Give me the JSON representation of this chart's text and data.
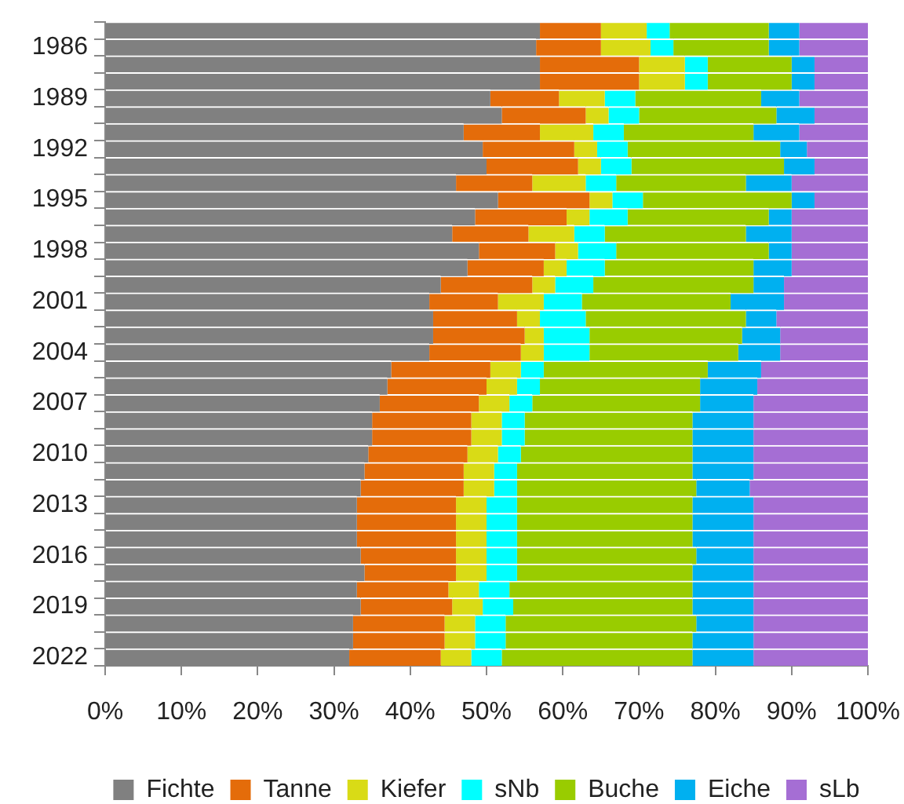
{
  "chart_data": {
    "type": "bar",
    "orientation": "horizontal",
    "stacked": true,
    "categories": [
      null,
      "1986",
      null,
      null,
      "1989",
      null,
      null,
      "1992",
      null,
      null,
      "1995",
      null,
      null,
      "1998",
      null,
      null,
      "2001",
      null,
      null,
      "2004",
      null,
      null,
      "2007",
      null,
      null,
      "2010",
      null,
      null,
      "2013",
      null,
      null,
      "2016",
      null,
      null,
      "2019",
      null,
      null,
      "2022"
    ],
    "series": [
      {
        "name": "Fichte",
        "color": "#808080",
        "values": [
          57,
          56.5,
          57,
          57,
          50.5,
          52,
          47,
          49.5,
          50,
          46,
          51.5,
          48.5,
          45.5,
          49,
          47.5,
          44,
          42.5,
          43,
          43,
          42.5,
          37.5,
          37,
          36,
          35,
          35,
          34.5,
          34,
          33.5,
          33,
          33,
          33,
          33.5,
          34,
          33,
          33.5,
          32.5,
          32.5,
          32
        ]
      },
      {
        "name": "Tanne",
        "color": "#e46c0a",
        "values": [
          8,
          8.5,
          13,
          13,
          9,
          11,
          10,
          12,
          12,
          10,
          12,
          12,
          10,
          10,
          10,
          12,
          9,
          11,
          12,
          12,
          13,
          13,
          13,
          13,
          13,
          13,
          13,
          13.5,
          13,
          13,
          13,
          12.5,
          12,
          12,
          12,
          12,
          12,
          12
        ]
      },
      {
        "name": "Kiefer",
        "color": "#d9db16",
        "values": [
          6,
          6.5,
          6,
          6,
          6,
          3,
          7,
          3,
          3,
          7,
          3,
          3,
          6,
          3,
          3,
          3,
          6,
          3,
          2.5,
          3,
          4,
          4,
          4,
          4,
          4,
          4,
          4,
          4,
          4,
          4,
          4,
          4,
          4,
          4,
          4,
          4,
          4,
          4
        ]
      },
      {
        "name": "sNb",
        "color": "#00ffff",
        "values": [
          3,
          3,
          3,
          3,
          4,
          4,
          4,
          4,
          4,
          4,
          4,
          5,
          4,
          5,
          5,
          5,
          5,
          6,
          6,
          6,
          3,
          3,
          3,
          3,
          3,
          3,
          3,
          3,
          4,
          4,
          4,
          4,
          4,
          4,
          4,
          4,
          4,
          4
        ]
      },
      {
        "name": "Buche",
        "color": "#99cc00",
        "values": [
          13,
          12.5,
          11,
          11,
          16.5,
          18,
          17,
          20,
          20,
          17,
          19.5,
          18.5,
          18.5,
          20,
          19.5,
          21,
          19.5,
          21,
          20,
          19.5,
          21.5,
          21,
          22,
          22,
          22,
          22.5,
          23,
          23.5,
          23,
          23,
          23,
          23.5,
          23,
          24,
          23.5,
          25,
          24.5,
          25
        ]
      },
      {
        "name": "Eiche",
        "color": "#00b0f0",
        "values": [
          4,
          4,
          3,
          3,
          5,
          5,
          6,
          3.5,
          4,
          6,
          3,
          3,
          6,
          3,
          5,
          4,
          7,
          4,
          5,
          5.5,
          7,
          7.5,
          7,
          8,
          8,
          8,
          8,
          7,
          8,
          8,
          8,
          7.5,
          8,
          8,
          8,
          7.5,
          8,
          8
        ]
      },
      {
        "name": "sLb",
        "color": "#a56ed4",
        "values": [
          9,
          9,
          7,
          7,
          9,
          7,
          9,
          8,
          7,
          10,
          7,
          10,
          10,
          10,
          10,
          11,
          11,
          12,
          11.5,
          11.5,
          14,
          14.5,
          15,
          15,
          15,
          15,
          15,
          15.5,
          15,
          15,
          15,
          15,
          15,
          15,
          15,
          15,
          15,
          15
        ]
      }
    ],
    "xlim": [
      0,
      100
    ],
    "xticks": [
      {
        "value": 0,
        "label": "0%"
      },
      {
        "value": 10,
        "label": "10%"
      },
      {
        "value": 20,
        "label": "20%"
      },
      {
        "value": 30,
        "label": "30%"
      },
      {
        "value": 40,
        "label": "40%"
      },
      {
        "value": 50,
        "label": "50%"
      },
      {
        "value": 60,
        "label": "60%"
      },
      {
        "value": 70,
        "label": "70%"
      },
      {
        "value": 80,
        "label": "80%"
      },
      {
        "value": 90,
        "label": "90%"
      },
      {
        "value": 100,
        "label": "100%"
      }
    ],
    "grid": false,
    "legend": "bottom"
  }
}
